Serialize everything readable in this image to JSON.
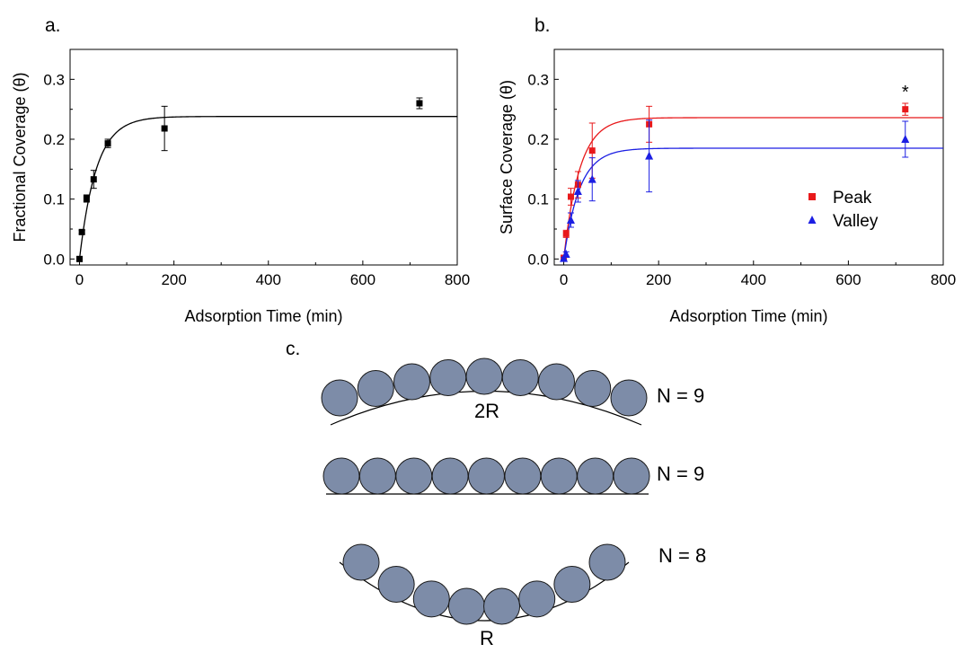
{
  "figure": {
    "panel_c": {
      "label": "c.",
      "rows": [
        {
          "shape": "convex",
          "n_label": "N = 9",
          "circle_count": 9,
          "radius_label": "2R"
        },
        {
          "shape": "flat",
          "n_label": "N = 9",
          "circle_count": 9,
          "radius_label": ""
        },
        {
          "shape": "concave",
          "n_label": "N = 8",
          "circle_count": 8,
          "radius_label": "R"
        }
      ],
      "circle_color": "#7d8ca8"
    }
  },
  "chart_data": [
    {
      "type": "scatter",
      "panel_label": "a.",
      "xlabel": "Adsorption Time (min)",
      "ylabel": "Fractional Coverage (θ)",
      "xlim": [
        -20,
        800
      ],
      "ylim": [
        -0.01,
        0.35
      ],
      "x_ticks": [
        0,
        200,
        400,
        600,
        800
      ],
      "y_ticks": [
        0.0,
        0.1,
        0.2,
        0.3
      ],
      "x_tick_labels": [
        "0",
        "200",
        "400",
        "600",
        "800"
      ],
      "y_tick_labels": [
        "0.0",
        "0.1",
        "0.2",
        "0.3"
      ],
      "grid": false,
      "legend": null,
      "series": [
        {
          "color": "#000000",
          "marker": "square",
          "x": [
            0,
            5,
            15,
            30,
            60,
            180,
            720
          ],
          "y": [
            0.0,
            0.045,
            0.101,
            0.133,
            0.193,
            0.218,
            0.26
          ],
          "error": [
            0.0,
            0.003,
            0.006,
            0.015,
            0.007,
            0.037,
            0.009
          ],
          "fit": {
            "model": "exponential",
            "plateau": 0.238,
            "rate": 0.028
          }
        }
      ]
    },
    {
      "type": "scatter",
      "panel_label": "b.",
      "xlabel": "Adsorption Time (min)",
      "ylabel": "Surface Coverage (θ)",
      "xlim": [
        -20,
        800
      ],
      "ylim": [
        -0.01,
        0.35
      ],
      "x_ticks": [
        0,
        200,
        400,
        600,
        800
      ],
      "y_ticks": [
        0.0,
        0.1,
        0.2,
        0.3
      ],
      "x_tick_labels": [
        "0",
        "200",
        "400",
        "600",
        "800"
      ],
      "y_tick_labels": [
        "0.0",
        "0.1",
        "0.2",
        "0.3"
      ],
      "grid": false,
      "legend": "right",
      "annotations": [
        {
          "text": "*",
          "x": 720
        }
      ],
      "series": [
        {
          "name": "Peak",
          "color": "#e8191b",
          "marker": "square",
          "x": [
            0,
            5,
            15,
            30,
            60,
            180,
            720
          ],
          "y": [
            0.002,
            0.042,
            0.104,
            0.124,
            0.181,
            0.225,
            0.25
          ],
          "error": [
            0.003,
            0.006,
            0.014,
            0.022,
            0.046,
            0.03,
            0.01
          ],
          "fit": {
            "model": "exponential",
            "plateau": 0.236,
            "rate": 0.03
          }
        },
        {
          "name": "Valley",
          "color": "#1c1fe3",
          "marker": "triangle",
          "x": [
            0,
            5,
            15,
            30,
            60,
            180,
            720
          ],
          "y": [
            0.001,
            0.008,
            0.065,
            0.113,
            0.133,
            0.172,
            0.2
          ],
          "error": [
            0.002,
            0.004,
            0.012,
            0.018,
            0.036,
            0.06,
            0.03
          ],
          "fit": {
            "model": "exponential",
            "plateau": 0.185,
            "rate": 0.03
          }
        }
      ]
    }
  ]
}
